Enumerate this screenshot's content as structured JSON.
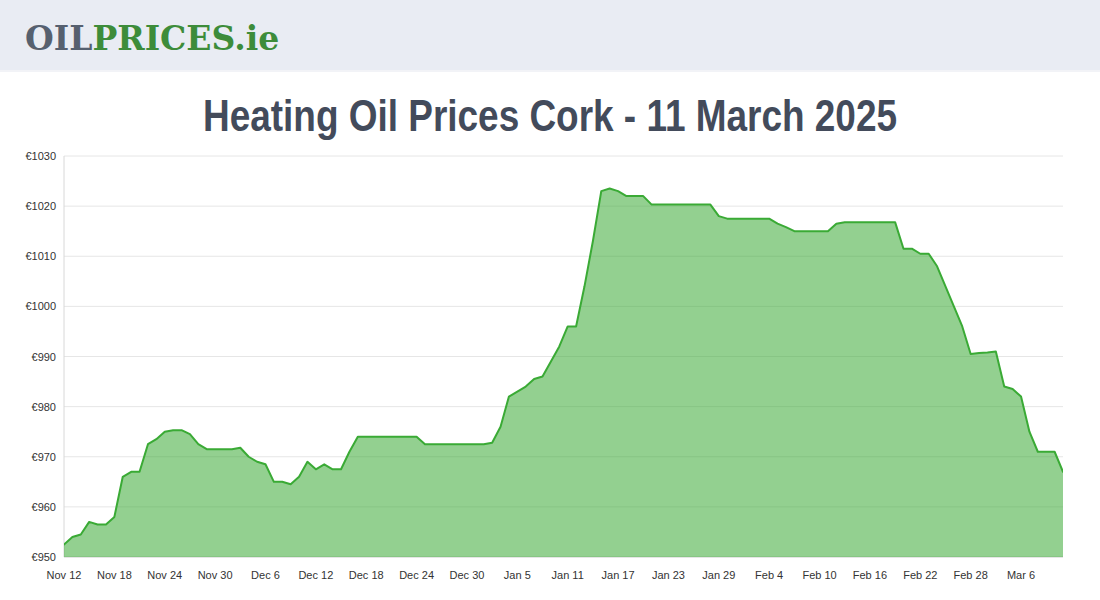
{
  "header": {
    "logo_parts": [
      "OIL",
      "PRICES.ie"
    ]
  },
  "chart_data": {
    "type": "area",
    "title": "Heating Oil Prices Cork - 11 March 2025",
    "color": "#3aaa35",
    "grid": true,
    "ylim": [
      950,
      1030
    ],
    "yticks": [
      {
        "value": 950,
        "label": "€950"
      },
      {
        "value": 960,
        "label": "€960"
      },
      {
        "value": 970,
        "label": "€970"
      },
      {
        "value": 980,
        "label": "€980"
      },
      {
        "value": 990,
        "label": "€990"
      },
      {
        "value": 1000,
        "label": "€1000"
      },
      {
        "value": 1010,
        "label": "€1010"
      },
      {
        "value": 1020,
        "label": "€1020"
      },
      {
        "value": 1030,
        "label": "€1030"
      }
    ],
    "categories": [
      "Nov 12",
      null,
      null,
      null,
      null,
      null,
      "Nov 18",
      null,
      null,
      null,
      null,
      null,
      "Nov 24",
      null,
      null,
      null,
      null,
      null,
      "Nov 30",
      null,
      null,
      null,
      null,
      null,
      "Dec 6",
      null,
      null,
      null,
      null,
      null,
      "Dec 12",
      null,
      null,
      null,
      null,
      null,
      "Dec 18",
      null,
      null,
      null,
      null,
      null,
      "Dec 24",
      null,
      null,
      null,
      null,
      null,
      "Dec 30",
      null,
      null,
      null,
      null,
      null,
      "Jan 5",
      null,
      null,
      null,
      null,
      null,
      "Jan 11",
      null,
      null,
      null,
      null,
      null,
      "Jan 17",
      null,
      null,
      null,
      null,
      null,
      "Jan 23",
      null,
      null,
      null,
      null,
      null,
      "Jan 29",
      null,
      null,
      null,
      null,
      null,
      "Feb 4",
      null,
      null,
      null,
      null,
      null,
      "Feb 10",
      null,
      null,
      null,
      null,
      null,
      "Feb 16",
      null,
      null,
      null,
      null,
      null,
      "Feb 22",
      null,
      null,
      null,
      null,
      null,
      "Feb 28",
      null,
      null,
      null,
      null,
      null,
      "Mar 6",
      null,
      null,
      null,
      null,
      null
    ],
    "values": [
      952.5,
      954,
      954.5,
      957,
      956.5,
      956.5,
      958,
      966,
      967,
      967,
      972.5,
      973.5,
      975,
      975.3,
      975.3,
      974.5,
      972.5,
      971.5,
      971.5,
      971.5,
      971.5,
      971.8,
      970,
      969,
      968.5,
      965,
      965,
      964.5,
      966,
      969,
      967.5,
      968.5,
      967.5,
      967.5,
      971,
      974,
      974,
      974,
      974,
      974,
      974,
      974,
      974,
      972.5,
      972.5,
      972.5,
      972.5,
      972.5,
      972.5,
      972.5,
      972.5,
      972.8,
      976,
      982,
      983,
      984,
      985.5,
      986,
      989,
      992,
      996,
      996,
      1004,
      1013,
      1023,
      1023.5,
      1023,
      1022,
      1022,
      1022,
      1020.3,
      1020.3,
      1020.3,
      1020.3,
      1020.3,
      1020.3,
      1020.3,
      1020.3,
      1018,
      1017.5,
      1017.5,
      1017.5,
      1017.5,
      1017.5,
      1017.5,
      1016.5,
      1015.8,
      1015,
      1015,
      1015,
      1015,
      1015,
      1016.5,
      1016.8,
      1016.8,
      1016.8,
      1016.8,
      1016.8,
      1016.8,
      1016.8,
      1011.5,
      1011.5,
      1010.5,
      1010.5,
      1008,
      1004,
      1000,
      996,
      990.5,
      990.7,
      990.8,
      991,
      984,
      983.5,
      982,
      975,
      971,
      971,
      971,
      967
    ]
  }
}
